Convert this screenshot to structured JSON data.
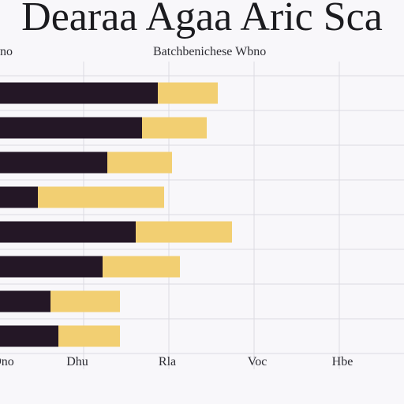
{
  "header": {
    "title": "Dearaa Agaa Aric Sca",
    "subtitle": "Batchbenichese Wbno",
    "legend_prefix": "no"
  },
  "chart_data": {
    "type": "bar",
    "orientation": "horizontal",
    "stacked": true,
    "title": "Dearaa Agaa Aric Sca",
    "subtitle": "Batchbenichese Wbno",
    "categories": [
      "",
      "",
      "",
      "",
      "",
      "",
      "",
      ""
    ],
    "series": [
      {
        "values": [
          200,
          180,
          136,
          48,
          172,
          130,
          64,
          74
        ]
      },
      {
        "values": [
          76,
          82,
          82,
          160,
          122,
          98,
          88,
          78
        ]
      }
    ],
    "x_ticks": [
      "Dno",
      "Dhu",
      "Rla",
      "Voc",
      "Hbe"
    ],
    "xlim": [
      0,
      512
    ],
    "grid": true,
    "legend": "top",
    "colors": [
      "#241726",
      "#f2cf72"
    ]
  }
}
